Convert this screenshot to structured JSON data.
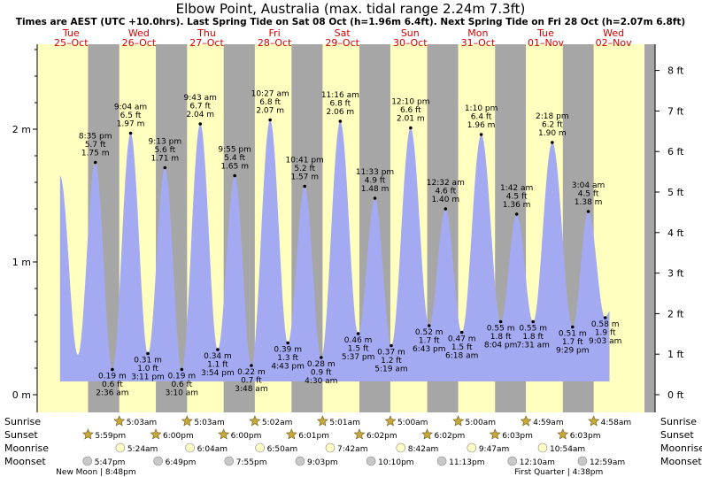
{
  "title": "Elbow Point, Australia (max. tidal range 2.24m 7.3ft)",
  "subtitle": "Times are AEST (UTC +10.0hrs). Last Spring Tide on Sat 08 Oct (h=1.96m 6.4ft). Next Spring Tide on Fri 28 Oct (h=2.07m 6.8ft)",
  "days": [
    {
      "dow": "Tue",
      "date": "25–Oct"
    },
    {
      "dow": "Wed",
      "date": "26–Oct"
    },
    {
      "dow": "Thu",
      "date": "27–Oct"
    },
    {
      "dow": "Fri",
      "date": "28–Oct"
    },
    {
      "dow": "Sat",
      "date": "29–Oct"
    },
    {
      "dow": "Sun",
      "date": "30–Oct"
    },
    {
      "dow": "Mon",
      "date": "31–Oct"
    },
    {
      "dow": "Tue",
      "date": "01–Nov"
    },
    {
      "dow": "Wed",
      "date": "02–Nov"
    }
  ],
  "row_labels": {
    "sunrise": "Sunrise",
    "sunset": "Sunset",
    "moonrise": "Moonrise",
    "moonset": "Moonset"
  },
  "colors": {
    "day": "#ffffc0",
    "night": "#a6a6a6",
    "water": "#a4aaf2",
    "star": "#c8a838",
    "moon": "#ffffc8",
    "moonset": "#c8c8c8"
  },
  "chart_data": {
    "type": "area",
    "x_start": "2022-10-25 00:00",
    "ylim_m": [
      0,
      2.2
    ],
    "ylim_ft": [
      0,
      8
    ],
    "yticks_m": [
      "0 m",
      "1 m",
      "2 m"
    ],
    "yticks_ft": [
      "0 ft",
      "1 ft",
      "2 ft",
      "3 ft",
      "4 ft",
      "5 ft",
      "6 ft",
      "7 ft",
      "8 ft"
    ],
    "tides": [
      {
        "t": "Tue 25 Oct 8:35 pm",
        "time": "8:35 pm",
        "m": 1.75,
        "ft": "5.7 ft",
        "mtext": "1.75 m",
        "type": "high"
      },
      {
        "t": "Wed 26 Oct 2:36 am",
        "time": "2:36 am",
        "m": 0.19,
        "ft": "0.6 ft",
        "mtext": "0.19 m",
        "type": "low"
      },
      {
        "t": "Wed 26 Oct 9:04 am",
        "time": "9:04 am",
        "m": 1.97,
        "ft": "6.5 ft",
        "mtext": "1.97 m",
        "type": "high"
      },
      {
        "t": "Wed 26 Oct 3:11 pm",
        "time": "3:11 pm",
        "m": 0.31,
        "ft": "1.0 ft",
        "mtext": "0.31 m",
        "type": "low"
      },
      {
        "t": "Wed 26 Oct 9:13 pm",
        "time": "9:13 pm",
        "m": 1.71,
        "ft": "5.6 ft",
        "mtext": "1.71 m",
        "type": "high"
      },
      {
        "t": "Thu 27 Oct 3:10 am",
        "time": "3:10 am",
        "m": 0.19,
        "ft": "0.6 ft",
        "mtext": "0.19 m",
        "type": "low"
      },
      {
        "t": "Thu 27 Oct 9:43 am",
        "time": "9:43 am",
        "m": 2.04,
        "ft": "6.7 ft",
        "mtext": "2.04 m",
        "type": "high"
      },
      {
        "t": "Thu 27 Oct 3:54 pm",
        "time": "3:54 pm",
        "m": 0.34,
        "ft": "1.1 ft",
        "mtext": "0.34 m",
        "type": "low"
      },
      {
        "t": "Thu 27 Oct 9:55 pm",
        "time": "9:55 pm",
        "m": 1.65,
        "ft": "5.4 ft",
        "mtext": "1.65 m",
        "type": "high"
      },
      {
        "t": "Fri 28 Oct 3:48 am",
        "time": "3:48 am",
        "m": 0.22,
        "ft": "0.7 ft",
        "mtext": "0.22 m",
        "type": "low"
      },
      {
        "t": "Fri 28 Oct 10:27 am",
        "time": "10:27 am",
        "m": 2.07,
        "ft": "6.8 ft",
        "mtext": "2.07 m",
        "type": "high"
      },
      {
        "t": "Fri 28 Oct 4:43 pm",
        "time": "4:43 pm",
        "m": 0.39,
        "ft": "1.3 ft",
        "mtext": "0.39 m",
        "type": "low"
      },
      {
        "t": "Fri 28 Oct 10:41 pm",
        "time": "10:41 pm",
        "m": 1.57,
        "ft": "5.2 ft",
        "mtext": "1.57 m",
        "type": "high"
      },
      {
        "t": "Sat 29 Oct 4:30 am",
        "time": "4:30 am",
        "m": 0.28,
        "ft": "0.9 ft",
        "mtext": "0.28 m",
        "type": "low"
      },
      {
        "t": "Sat 29 Oct 11:16 am",
        "time": "11:16 am",
        "m": 2.06,
        "ft": "6.8 ft",
        "mtext": "2.06 m",
        "type": "high"
      },
      {
        "t": "Sat 29 Oct 5:37 pm",
        "time": "5:37 pm",
        "m": 0.46,
        "ft": "1.5 ft",
        "mtext": "0.46 m",
        "type": "low"
      },
      {
        "t": "Sat 29 Oct 11:33 pm",
        "time": "11:33 pm",
        "m": 1.48,
        "ft": "4.9 ft",
        "mtext": "1.48 m",
        "type": "high"
      },
      {
        "t": "Sun 30 Oct 5:19 am",
        "time": "5:19 am",
        "m": 0.37,
        "ft": "1.2 ft",
        "mtext": "0.37 m",
        "type": "low"
      },
      {
        "t": "Sun 30 Oct 12:10 pm",
        "time": "12:10 pm",
        "m": 2.01,
        "ft": "6.6 ft",
        "mtext": "2.01 m",
        "type": "high"
      },
      {
        "t": "Sun 30 Oct 6:43 pm",
        "time": "6:43 pm",
        "m": 0.52,
        "ft": "1.7 ft",
        "mtext": "0.52 m",
        "type": "low"
      },
      {
        "t": "Mon 31 Oct 12:32 am",
        "time": "12:32 am",
        "m": 1.4,
        "ft": "4.6 ft",
        "mtext": "1.40 m",
        "type": "high"
      },
      {
        "t": "Mon 31 Oct 6:18 am",
        "time": "6:18 am",
        "m": 0.47,
        "ft": "1.5 ft",
        "mtext": "0.47 m",
        "type": "low"
      },
      {
        "t": "Mon 31 Oct 1:10 pm",
        "time": "1:10 pm",
        "m": 1.96,
        "ft": "6.4 ft",
        "mtext": "1.96 m",
        "type": "high"
      },
      {
        "t": "Mon 31 Oct 8:04 pm",
        "time": "8:04 pm",
        "m": 0.55,
        "ft": "1.8 ft",
        "mtext": "0.55 m",
        "type": "low"
      },
      {
        "t": "Tue 01 Nov 1:42 am",
        "time": "1:42 am",
        "m": 1.36,
        "ft": "4.5 ft",
        "mtext": "1.36 m",
        "type": "high"
      },
      {
        "t": "Tue 01 Nov 7:31 am",
        "time": "7:31 am",
        "m": 0.55,
        "ft": "1.8 ft",
        "mtext": "0.55 m",
        "type": "low"
      },
      {
        "t": "Tue 01 Nov 2:18 pm",
        "time": "2:18 pm",
        "m": 1.9,
        "ft": "6.2 ft",
        "mtext": "1.90 m",
        "type": "high"
      },
      {
        "t": "Tue 01 Nov 9:29 pm",
        "time": "9:29 pm",
        "m": 0.51,
        "ft": "1.7 ft",
        "mtext": "0.51 m",
        "type": "low"
      },
      {
        "t": "Wed 02 Nov 3:04 am",
        "time": "3:04 am",
        "m": 1.38,
        "ft": "4.5 ft",
        "mtext": "1.38 m",
        "type": "high"
      },
      {
        "t": "Wed 02 Nov 9:03 am",
        "time": "9:03 am",
        "m": 0.58,
        "ft": "1.9 ft",
        "mtext": "0.58 m",
        "type": "low"
      }
    ],
    "sunrise": [
      {
        "t": "Wed 26 Oct 5:03 am",
        "label": "5:03am"
      },
      {
        "t": "Thu 27 Oct 5:03 am",
        "label": "5:03am"
      },
      {
        "t": "Fri 28 Oct 5:02 am",
        "label": "5:02am"
      },
      {
        "t": "Sat 29 Oct 5:01 am",
        "label": "5:01am"
      },
      {
        "t": "Sun 30 Oct 5:00 am",
        "label": "5:00am"
      },
      {
        "t": "Mon 31 Oct 5:00 am",
        "label": "5:00am"
      },
      {
        "t": "Tue 01 Nov 4:59 am",
        "label": "4:59am"
      },
      {
        "t": "Wed 02 Nov 4:58 am",
        "label": "4:58am"
      }
    ],
    "sunset": [
      {
        "t": "Tue 25 Oct 5:59 pm",
        "label": "5:59pm"
      },
      {
        "t": "Wed 26 Oct 6:00 pm",
        "label": "6:00pm"
      },
      {
        "t": "Thu 27 Oct 6:00 pm",
        "label": "6:00pm"
      },
      {
        "t": "Fri 28 Oct 6:01 pm",
        "label": "6:01pm"
      },
      {
        "t": "Sat 29 Oct 6:02 pm",
        "label": "6:02pm"
      },
      {
        "t": "Sun 30 Oct 6:02 pm",
        "label": "6:02pm"
      },
      {
        "t": "Mon 31 Oct 6:03 pm",
        "label": "6:03pm"
      },
      {
        "t": "Tue 01 Nov 6:03 pm",
        "label": "6:03pm"
      }
    ],
    "moonrise": [
      {
        "t": "Wed 26 Oct 5:24 am",
        "label": "5:24am"
      },
      {
        "t": "Thu 27 Oct 6:04 am",
        "label": "6:04am"
      },
      {
        "t": "Fri 28 Oct 6:50 am",
        "label": "6:50am"
      },
      {
        "t": "Sat 29 Oct 7:42 am",
        "label": "7:42am"
      },
      {
        "t": "Sun 30 Oct 8:42 am",
        "label": "8:42am"
      },
      {
        "t": "Mon 31 Oct 9:47 am",
        "label": "9:47am"
      },
      {
        "t": "Tue 01 Nov 10:54 am",
        "label": "10:54am"
      }
    ],
    "moonset": [
      {
        "t": "Tue 25 Oct 5:47 pm",
        "label": "5:47pm"
      },
      {
        "t": "Wed 26 Oct 6:49 pm",
        "label": "6:49pm"
      },
      {
        "t": "Thu 27 Oct 7:55 pm",
        "label": "7:55pm"
      },
      {
        "t": "Fri 28 Oct 9:03 pm",
        "label": "9:03pm"
      },
      {
        "t": "Sat 29 Oct 10:10 pm",
        "label": "10:10pm"
      },
      {
        "t": "Sun 30 Oct 11:13 pm",
        "label": "11:13pm"
      },
      {
        "t": "Tue 01 Nov 12:10 am",
        "label": "12:10am"
      },
      {
        "t": "Wed 02 Nov 12:59 am",
        "label": "12:59am"
      }
    ],
    "moon_phases": [
      {
        "t": "Tue 25 Oct 8:48 pm",
        "label": "New Moon | 8:48pm"
      },
      {
        "t": "Tue 01 Nov 4:38 pm",
        "label": "First Quarter | 4:38pm"
      }
    ]
  }
}
